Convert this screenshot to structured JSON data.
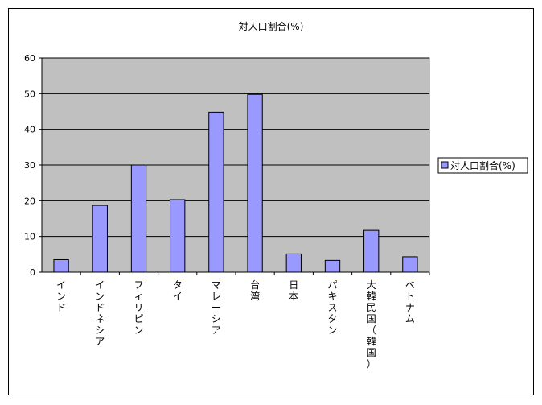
{
  "chart_data": {
    "type": "bar",
    "title": "対人口割合(%)",
    "categories": [
      "インド",
      "インドネシア",
      "フィリピン",
      "タイ",
      "マレーシア",
      "台湾",
      "日本",
      "パキスタン",
      "大韓民国（韓国）",
      "ベトナム"
    ],
    "series": [
      {
        "name": "対人口割合(%)",
        "values": [
          3.5,
          18.7,
          30.0,
          20.3,
          44.8,
          49.8,
          5.1,
          3.3,
          11.7,
          4.3
        ]
      }
    ],
    "ylim": [
      0,
      60
    ],
    "yticks": [
      "0",
      "10",
      "20",
      "30",
      "40",
      "50",
      "60"
    ],
    "xlabel": "",
    "ylabel": "",
    "grid": true,
    "legend_position": "right",
    "colors": {
      "bar_fill": "#9999ff",
      "plot_bg": "#c0c0c0",
      "grid": "#000000"
    }
  }
}
